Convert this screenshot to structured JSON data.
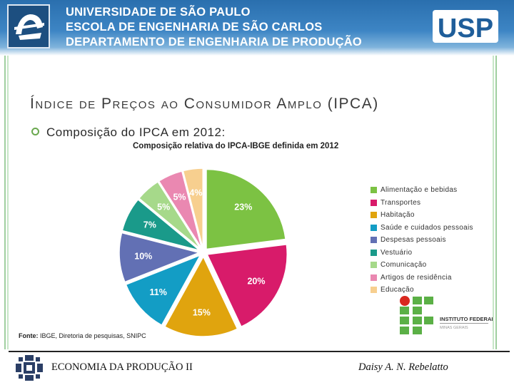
{
  "header": {
    "line1": "UNIVERSIDADE DE SÃO PAULO",
    "line2": "ESCOLA DE ENGENHARIA DE SÃO CARLOS",
    "line3": "DEPARTAMENTO DE ENGENHARIA DE PRODUÇÃO",
    "usp_logo_text": "USP"
  },
  "slide": {
    "title": "Índice de Preços ao Consumidor Amplo (IPCA)",
    "bullet": "Composição do IPCA em 2012:"
  },
  "chart_data": {
    "type": "pie",
    "title": "Composição relativa do IPCA-IBGE definida em 2012",
    "slices": [
      {
        "label": "Alimentação e bebidas",
        "value": 23,
        "data_label": "23%",
        "color": "#7cc243"
      },
      {
        "label": "Transportes",
        "value": 20,
        "data_label": "20%",
        "color": "#d81b6a"
      },
      {
        "label": "Habitação",
        "value": 15,
        "data_label": "15%",
        "color": "#e0a40e"
      },
      {
        "label": "Saúde e cuidados pessoais",
        "value": 11,
        "data_label": "11%",
        "color": "#139dc5"
      },
      {
        "label": "Despesas pessoais",
        "value": 10,
        "data_label": "10%",
        "color": "#6270b4"
      },
      {
        "label": "Vestuário",
        "value": 7,
        "data_label": "7%",
        "color": "#1a9a8a"
      },
      {
        "label": "Comunicação",
        "value": 5,
        "data_label": "5%",
        "color": "#a6d98a"
      },
      {
        "label": "Artigos de residência",
        "value": 5,
        "data_label": "5%",
        "color": "#ea88b1"
      },
      {
        "label": "Educação",
        "value": 4,
        "data_label": "4%",
        "color": "#f7cf8f"
      }
    ],
    "legend_position": "right",
    "source_label": "Fonte:",
    "source_text": "IBGE, Diretoria de pesquisas, SNIPC"
  },
  "institute_logo": {
    "line1": "INSTITUTO FEDERAL",
    "line2": "MINAS GERAIS"
  },
  "footer": {
    "course": "ECONOMIA DA PRODUÇÃO II",
    "author": "Daisy A. N. Rebelatto"
  }
}
